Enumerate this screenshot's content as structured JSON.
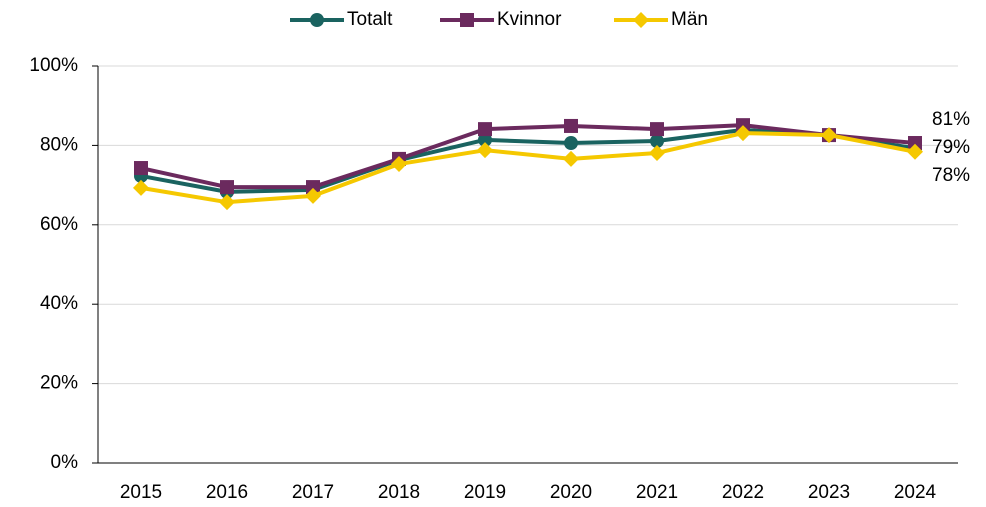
{
  "chart_data": {
    "type": "line",
    "categories": [
      "2015",
      "2016",
      "2017",
      "2018",
      "2019",
      "2020",
      "2021",
      "2022",
      "2023",
      "2024"
    ],
    "series": [
      {
        "name": "Totalt",
        "color": "#1a6360",
        "marker": "circle",
        "values": [
          72.3,
          68.3,
          68.8,
          76.3,
          81.4,
          80.6,
          81.1,
          83.9,
          82.6,
          79.3
        ],
        "value_labels": [
          null,
          null,
          null,
          null,
          null,
          null,
          null,
          null,
          null,
          "79%"
        ]
      },
      {
        "name": "Kvinnor",
        "color": "#6b2a5e",
        "marker": "square",
        "values": [
          74.3,
          69.5,
          69.5,
          76.6,
          84.1,
          84.9,
          84.1,
          85.1,
          82.6,
          80.6
        ],
        "value_labels": [
          null,
          null,
          null,
          null,
          null,
          null,
          null,
          null,
          null,
          "81%"
        ]
      },
      {
        "name": "Män",
        "color": "#f5c800",
        "marker": "diamond",
        "values": [
          69.3,
          65.7,
          67.3,
          75.3,
          78.8,
          76.6,
          78.1,
          83.1,
          82.6,
          78.4
        ],
        "value_labels": [
          null,
          null,
          null,
          null,
          null,
          null,
          null,
          null,
          null,
          "78%"
        ]
      }
    ],
    "ylim": [
      0,
      100
    ],
    "yticks": [
      {
        "value": 0,
        "label": "0%"
      },
      {
        "value": 20,
        "label": "20%"
      },
      {
        "value": 40,
        "label": "40%"
      },
      {
        "value": 60,
        "label": "60%"
      },
      {
        "value": 80,
        "label": "80%"
      },
      {
        "value": 100,
        "label": "100%"
      }
    ],
    "grid": true,
    "legend": "top"
  }
}
